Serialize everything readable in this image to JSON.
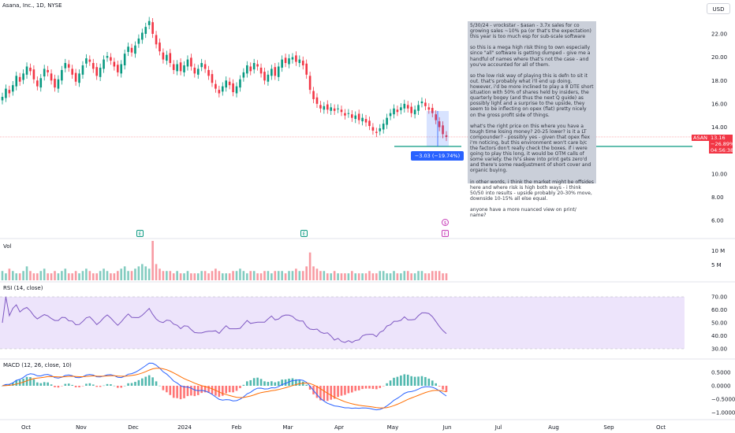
{
  "header": {
    "title": "Asana, Inc., 1D, NYSE",
    "currency": "USD"
  },
  "note_text": "5/30/24 - vrockstar - $asan - 3.7x sales for co growing sales ~10% pa (or that's the expectation) this year is too much esp for sub-scale software\n\nso this is a mega high risk thing to own especially since \"all\" software is getting dumped - give me a handful of names where that's not the case - and you've accounted for all of them.\n\nso the low risk way of playing this is defn to sit it out. that's probably what i'll end up doing. however, i'd be more inclined to play a 8 DTE short situation with 50% of shares held by insiders, the quarterly bogey (and thus the next Q guide) as possibly light and a surprise to the upside, they seem to be inflecting on opex (flat) pretty nicely on the gross profit side of things.\n\nwhat's the right price on this where you have a tough time losing money? 20-25 lower? is it a LT compounder? - possibly yes - given that opex flex i'm noticing, but this environment won't care b/c the factors don't really check the boxes. if i were going to play this long, it would be OTM calls of some variety. the IV's skew into print gets zero'd and there's some readjustment of short cover and organic buying.\n\nin other words, i think the market might be offsides here and where risk is high both ways - i think 50/50 into results - upside probably 20-30% move, downside 10-15% all else equal.\n\nanyone have a more nuanced view on print/ name?",
  "price_tag": {
    "symbol": "ASAN",
    "price": "13.16",
    "change": "−26.89%",
    "countdown": "04:56:38"
  },
  "measure_label": "−3.03 (−19.74%) −303",
  "events": {
    "earnings": "E",
    "dividend": "$"
  },
  "panes": {
    "volume_title": "Vol",
    "rsi_title": "RSI (14, close)",
    "macd_title": "MACD (12, 26, close, 10)"
  },
  "colors": {
    "up": "#089981",
    "down": "#f23645",
    "rsi": "#7e57c2",
    "macd": "#2962ff",
    "signal": "#ff6d00",
    "band": "#ede4fb",
    "note_bg": "#c6cbd6",
    "support_line": "#089981"
  },
  "chart_data": [
    {
      "type": "candlestick",
      "title": "Asana, Inc., 1D, NYSE",
      "x_tick_labels": [
        "Oct",
        "Nov",
        "Dec",
        "2024",
        "Feb",
        "Mar",
        "Apr",
        "May",
        "Jun",
        "Jul",
        "Aug",
        "Sep",
        "Oct"
      ],
      "y_tick_labels": [
        "22.00",
        "20.00",
        "18.00",
        "16.00",
        "14.00",
        "12.00",
        "10.00",
        "8.00",
        "6.00"
      ],
      "ylim": [
        5.5,
        24
      ],
      "series": [
        {
          "name": "ASAN",
          "close": [
            16.6,
            17.3,
            16.9,
            17.6,
            18.4,
            17.9,
            18.6,
            19.2,
            18.8,
            18.1,
            17.5,
            18.2,
            19.0,
            18.7,
            18.0,
            17.4,
            18.1,
            18.9,
            19.5,
            19.1,
            18.5,
            17.9,
            18.6,
            19.3,
            19.9,
            19.6,
            19.0,
            18.4,
            19.1,
            19.8,
            20.1,
            19.7,
            19.2,
            18.7,
            19.4,
            20.3,
            20.9,
            20.4,
            21.0,
            21.6,
            22.1,
            22.6,
            23.1,
            22.0,
            21.1,
            20.5,
            19.8,
            20.2,
            19.5,
            18.9,
            19.4,
            18.8,
            19.3,
            19.8,
            19.2,
            18.6,
            19.0,
            19.5,
            19.0,
            18.4,
            17.8,
            17.3,
            16.9,
            17.5,
            18.0,
            17.6,
            17.0,
            17.5,
            18.1,
            18.7,
            19.3,
            18.8,
            19.5,
            19.2,
            18.6,
            18.0,
            18.5,
            19.0,
            18.4,
            19.2,
            19.8,
            19.5,
            19.9,
            20.0,
            19.6,
            19.8,
            19.3,
            18.5,
            17.2,
            16.4,
            16.0,
            15.6,
            15.8,
            15.5,
            15.7,
            15.4,
            15.6,
            15.3,
            15.0,
            15.2,
            14.8,
            15.0,
            14.6,
            14.8,
            14.4,
            14.1,
            13.7,
            13.5,
            13.9,
            14.3,
            14.8,
            15.2,
            15.6,
            15.3,
            15.7,
            16.0,
            15.6,
            15.2,
            15.5,
            15.9,
            16.2,
            15.8,
            15.5,
            15.2,
            14.6,
            14.0,
            13.4,
            13.16
          ]
        }
      ],
      "volume": [
        4,
        3,
        5,
        4,
        3,
        3,
        4,
        6,
        4,
        3,
        3,
        4,
        5,
        3,
        3,
        4,
        3,
        4,
        5,
        3,
        3,
        4,
        3,
        4,
        5,
        4,
        3,
        3,
        4,
        5,
        4,
        3,
        3,
        4,
        5,
        6,
        4,
        4,
        5,
        6,
        7,
        6,
        5,
        17,
        7,
        5,
        4,
        4,
        4,
        3,
        4,
        3,
        3,
        4,
        3,
        3,
        3,
        4,
        4,
        3,
        4,
        5,
        4,
        3,
        3,
        3,
        4,
        4,
        5,
        4,
        3,
        4,
        4,
        3,
        3,
        4,
        4,
        3,
        4,
        4,
        4,
        3,
        4,
        4,
        5,
        4,
        4,
        6,
        12,
        6,
        5,
        4,
        4,
        3,
        3,
        4,
        3,
        3,
        3,
        3,
        4,
        3,
        3,
        3,
        3,
        4,
        3,
        3,
        4,
        4,
        3,
        3,
        4,
        3,
        3,
        4,
        4,
        3,
        3,
        4,
        4,
        3,
        3,
        4,
        4,
        4,
        3,
        3
      ],
      "volume_axis": [
        "10 M",
        "5 M"
      ],
      "rsi_axis": [
        "70.00",
        "60.00",
        "50.00",
        "40.00",
        "30.00"
      ],
      "rsi_band": [
        30,
        70
      ],
      "macd_axis": [
        "0.5000",
        "0.0000",
        "−0.5000",
        "−1.0000"
      ]
    }
  ]
}
